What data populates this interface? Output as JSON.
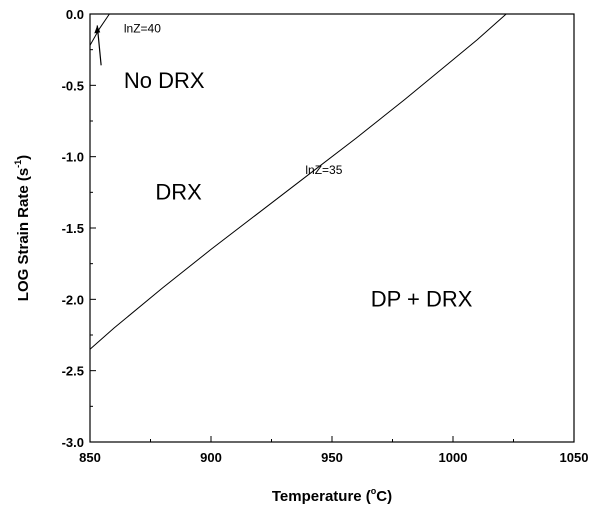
{
  "chart_data": {
    "type": "line",
    "title": "",
    "xlabel": "Temperature (°C)",
    "xlabel_main": "Temperature (",
    "xlabel_sup": "o",
    "xlabel_end": "C)",
    "ylabel_main": "LOG Strain Rate (s",
    "ylabel_sup": "-1",
    "ylabel_end": ")",
    "xlim": [
      850,
      1050
    ],
    "ylim": [
      -3.0,
      0.0
    ],
    "grid": false,
    "x_ticks": [
      850,
      900,
      950,
      1000,
      1050
    ],
    "x_tick_labels": [
      "850",
      "900",
      "950",
      "1000",
      "1050"
    ],
    "y_ticks": [
      0.0,
      -0.5,
      -1.0,
      -1.5,
      -2.0,
      -2.5,
      -3.0
    ],
    "y_tick_labels": [
      "0.0",
      "-0.5",
      "-1.0",
      "-1.5",
      "-2.0",
      "-2.5",
      "-3.0"
    ],
    "series": [
      {
        "name": "lnZ=35",
        "x": [
          850,
          860,
          880,
          900,
          920,
          940,
          960,
          980,
          1000,
          1010,
          1022
        ],
        "y": [
          -2.35,
          -2.2,
          -1.92,
          -1.65,
          -1.39,
          -1.13,
          -0.87,
          -0.6,
          -0.32,
          -0.18,
          0.0
        ]
      },
      {
        "name": "lnZ=40",
        "x": [
          850,
          854,
          858
        ],
        "y": [
          -0.22,
          -0.1,
          0.0
        ]
      }
    ],
    "annotations": [
      {
        "text": "No DRX",
        "x": 864,
        "y": -0.52,
        "size": 22
      },
      {
        "text": "DRX",
        "x": 877,
        "y": -1.3,
        "size": 22
      },
      {
        "text": "DP + DRX",
        "x": 966,
        "y": -2.05,
        "size": 22
      },
      {
        "text": "lnZ=35",
        "x": 939,
        "y": -1.12,
        "size": 12
      },
      {
        "text": "lnZ=40",
        "x": 864,
        "y": -0.13,
        "size": 12
      }
    ]
  }
}
